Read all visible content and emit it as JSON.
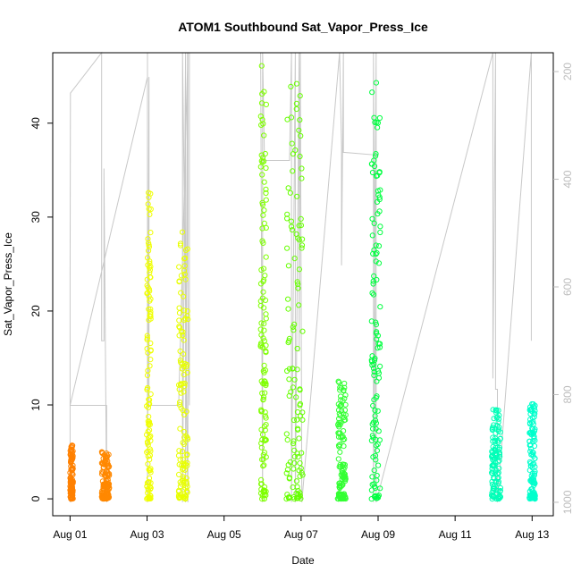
{
  "chart_data": {
    "type": "scatter",
    "title": "ATOM1 Southbound Sat_Vapor_Press_Ice",
    "xlabel": "Date",
    "ylabel": "Sat_Vapor_Press_Ice",
    "x_tick_labels": [
      "Aug 01",
      "Aug 03",
      "Aug 05",
      "Aug 07",
      "Aug 09",
      "Aug 11",
      "Aug 13"
    ],
    "x_tick_days": [
      1,
      3,
      5,
      7,
      9,
      11,
      13
    ],
    "xlim_days": [
      0.55,
      13.55
    ],
    "y_ticks": [
      0,
      10,
      20,
      30,
      40
    ],
    "ylim": [
      -1.8,
      47.5
    ],
    "y2_ticks": [
      200,
      400,
      600,
      800,
      1000
    ],
    "y2lim": [
      1025,
      165
    ],
    "y2_reversed": true,
    "grid": false,
    "point_colors": [
      "#FF8000",
      "#FF8800",
      "#F0FF00",
      "#E8FF00",
      "#7FFF00",
      "#66FF00",
      "#33FF33",
      "#00FF40",
      "#00FFB8",
      "#00FFCC"
    ],
    "pressure_line_color": "#c8c8c8",
    "clusters": [
      {
        "start": 1.0,
        "end": 1.08,
        "ymax": 5.7,
        "color": "#FF8000"
      },
      {
        "start": 1.82,
        "end": 2.02,
        "ymax": 5.0,
        "color": "#FF8800"
      },
      {
        "start": 2.99,
        "end": 3.1,
        "ymax": 32.6,
        "color": "#F0FF00"
      },
      {
        "start": 3.82,
        "end": 4.06,
        "ymax": 28.4,
        "color": "#E8FF00"
      },
      {
        "start": 5.95,
        "end": 6.1,
        "ymax": 46.1,
        "color": "#7FFF00"
      },
      {
        "start": 6.62,
        "end": 7.04,
        "ymax": 44.2,
        "color": "#66FF00"
      },
      {
        "start": 7.95,
        "end": 8.16,
        "ymax": 12.5,
        "color": "#33FF33"
      },
      {
        "start": 8.83,
        "end": 9.06,
        "ymax": 44.3,
        "color": "#00FF40"
      },
      {
        "start": 11.95,
        "end": 12.18,
        "ymax": 9.5,
        "color": "#00FFB8"
      },
      {
        "start": 12.93,
        "end": 13.08,
        "ymax": 10.1,
        "color": "#00FFCC"
      }
    ],
    "pressure_path": [
      [
        1.0,
        1000
      ],
      [
        1.0,
        590
      ],
      [
        1.01,
        240
      ],
      [
        1.82,
        165
      ],
      [
        1.82,
        700
      ],
      [
        1.88,
        700
      ],
      [
        1.88,
        380
      ],
      [
        1.95,
        1000
      ],
      [
        1.95,
        820
      ],
      [
        1.0,
        820
      ],
      [
        3.01,
        210
      ],
      [
        3.01,
        1000
      ],
      [
        3.01,
        165
      ],
      [
        3.01,
        1000
      ],
      [
        3.05,
        210
      ],
      [
        3.05,
        820
      ],
      [
        3.82,
        820
      ],
      [
        4.06,
        165
      ],
      [
        4.06,
        1000
      ],
      [
        3.92,
        165
      ],
      [
        3.92,
        1000
      ],
      [
        4.0,
        165
      ],
      [
        4.0,
        1000
      ],
      [
        4.05,
        165
      ],
      [
        4.05,
        560
      ],
      [
        4.1,
        820
      ],
      [
        4.1,
        165
      ],
      [
        5.95,
        165
      ],
      [
        6.0,
        1000
      ],
      [
        6.0,
        165
      ],
      [
        6.05,
        365
      ],
      [
        6.7,
        365
      ],
      [
        6.75,
        165
      ],
      [
        6.75,
        1000
      ],
      [
        6.85,
        165
      ],
      [
        6.85,
        1000
      ],
      [
        6.95,
        165
      ],
      [
        6.95,
        720
      ],
      [
        6.98,
        165
      ],
      [
        7.02,
        1000
      ],
      [
        8.0,
        165
      ],
      [
        8.05,
        340
      ],
      [
        8.05,
        560
      ],
      [
        8.1,
        165
      ],
      [
        8.1,
        350
      ],
      [
        8.95,
        355
      ],
      [
        8.95,
        1000
      ],
      [
        8.88,
        165
      ],
      [
        8.88,
        1000
      ],
      [
        8.95,
        165
      ],
      [
        8.95,
        1000
      ],
      [
        11.98,
        165
      ],
      [
        11.98,
        770
      ],
      [
        12.05,
        165
      ],
      [
        12.05,
        790
      ],
      [
        12.1,
        790
      ],
      [
        12.1,
        1000
      ],
      [
        12.98,
        165
      ],
      [
        12.98,
        700
      ]
    ]
  }
}
